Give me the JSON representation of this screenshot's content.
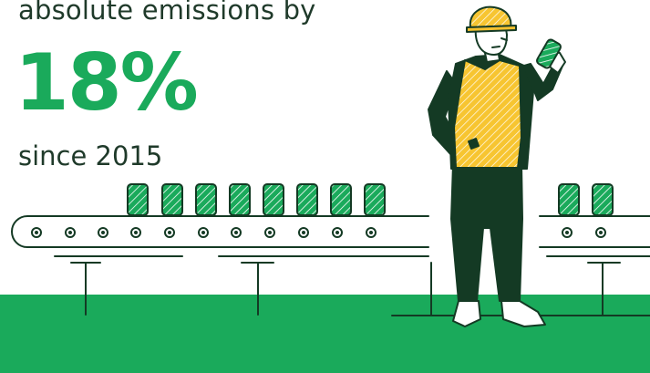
{
  "text": {
    "headline": "absolute emissions by",
    "percentage": "18%",
    "subline": "since 2015"
  },
  "colors": {
    "accent_green": "#1aaa5b",
    "dark_green": "#143a24",
    "vest_yellow": "#f7c531",
    "helmet_yellow": "#f5c12e",
    "text_dark": "#1f3a2a"
  },
  "illustration": {
    "subject": "factory worker in hard hat holding a can beside a conveyor belt",
    "icons": [
      "hard-hat-icon",
      "can-icon",
      "conveyor-belt-icon"
    ]
  }
}
